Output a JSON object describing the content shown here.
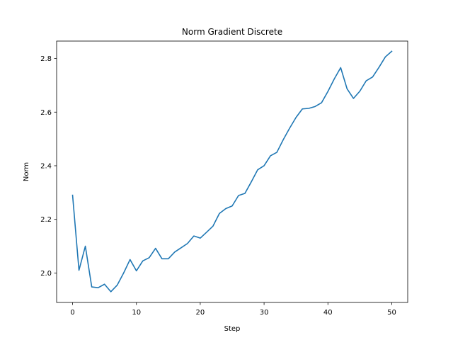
{
  "chart_data": {
    "type": "line",
    "title": "Norm Gradient Discrete",
    "xlabel": "Step",
    "ylabel": "Norm",
    "xlim": [
      -2.5,
      52.5
    ],
    "ylim": [
      1.89,
      2.865
    ],
    "xticks": [
      0,
      10,
      20,
      30,
      40,
      50
    ],
    "yticks": [
      2.0,
      2.2,
      2.4,
      2.6,
      2.8
    ],
    "ytick_labels": [
      "2.0",
      "2.2",
      "2.4",
      "2.6",
      "2.8"
    ],
    "grid": false,
    "series": [
      {
        "color": "#1f77b4",
        "x": [
          0,
          1,
          2,
          3,
          4,
          5,
          6,
          7,
          8,
          9,
          10,
          11,
          12,
          13,
          14,
          15,
          16,
          17,
          18,
          19,
          20,
          21,
          22,
          23,
          24,
          25,
          26,
          27,
          28,
          29,
          30,
          31,
          32,
          33,
          34,
          35,
          36,
          37,
          38,
          39,
          40,
          41,
          42,
          43,
          44,
          45,
          46,
          47,
          48,
          49,
          50
        ],
        "values": [
          2.29,
          2.01,
          2.1,
          1.948,
          1.945,
          1.958,
          1.93,
          1.955,
          2.0,
          2.05,
          2.008,
          2.045,
          2.057,
          2.092,
          2.053,
          2.053,
          2.078,
          2.094,
          2.11,
          2.138,
          2.13,
          2.152,
          2.175,
          2.222,
          2.24,
          2.25,
          2.289,
          2.297,
          2.34,
          2.385,
          2.4,
          2.437,
          2.45,
          2.497,
          2.54,
          2.58,
          2.612,
          2.614,
          2.621,
          2.635,
          2.677,
          2.724,
          2.766,
          2.687,
          2.651,
          2.678,
          2.717,
          2.731,
          2.767,
          2.806,
          2.827
        ]
      }
    ]
  }
}
